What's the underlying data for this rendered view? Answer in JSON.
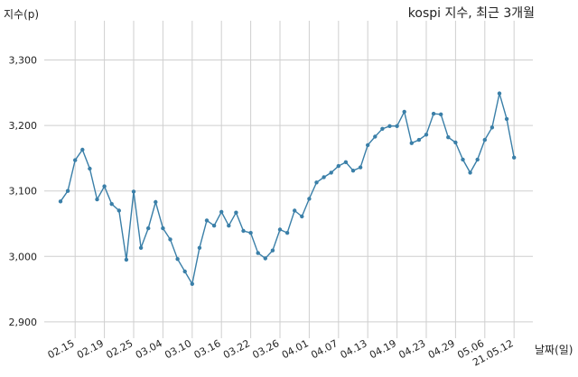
{
  "chart_data": {
    "type": "line",
    "title": "kospi 지수, 최근 3개월",
    "xlabel": "날짜(일)",
    "ylabel": "지수(p)",
    "ylim": [
      2875,
      3360
    ],
    "y_ticks": [
      2900,
      3000,
      3100,
      3200,
      3300
    ],
    "y_tick_labels": [
      "2,900",
      "3,000",
      "3,100",
      "3,200",
      "3,300"
    ],
    "x_tick_labels": [
      "02.15",
      "02.19",
      "02.25",
      "03.04",
      "03.10",
      "03.16",
      "03.22",
      "03.26",
      "04.01",
      "04.07",
      "04.13",
      "04.19",
      "04.23",
      "04.29",
      "05.06",
      "21.05.12"
    ],
    "x_tick_index": [
      2,
      6,
      10,
      14,
      18,
      22,
      26,
      30,
      34,
      38,
      42,
      46,
      50,
      54,
      58,
      62
    ],
    "grid": true,
    "series": [
      {
        "values": [
          3084,
          3100,
          3147,
          3163,
          3134,
          3087,
          3107,
          3080,
          3070,
          2995,
          3099,
          3013,
          3043,
          3083,
          3043,
          3026,
          2996,
          2977,
          2958,
          3013,
          3055,
          3047,
          3068,
          3047,
          3067,
          3039,
          3036,
          3005,
          2997,
          3009,
          3041,
          3036,
          3070,
          3061,
          3088,
          3113,
          3121,
          3128,
          3138,
          3144,
          3131,
          3136,
          3170,
          3183,
          3195,
          3199,
          3199,
          3221,
          3173,
          3178,
          3186,
          3218,
          3217,
          3182,
          3174,
          3148,
          3128,
          3148,
          3178,
          3197,
          3249,
          3210,
          3151
        ]
      }
    ]
  }
}
